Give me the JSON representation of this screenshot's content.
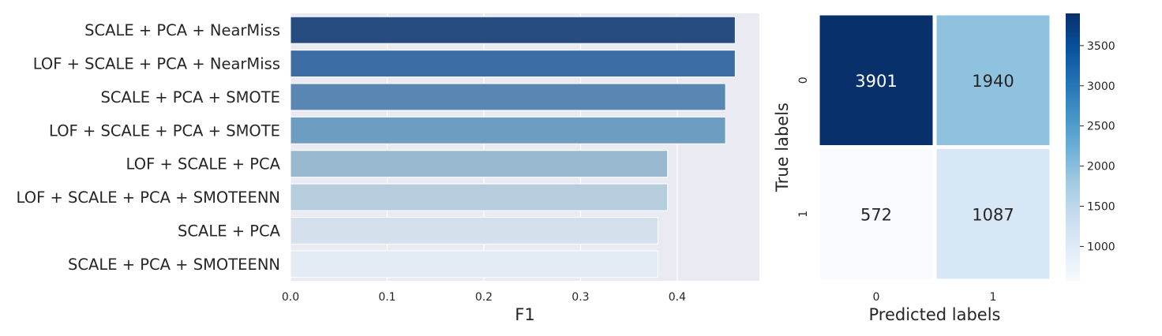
{
  "chart_data": [
    {
      "type": "bar",
      "orientation": "horizontal",
      "categories": [
        "SCALE + PCA + NearMiss",
        "LOF + SCALE + PCA + NearMiss",
        "SCALE + PCA + SMOTE",
        "LOF + SCALE + PCA + SMOTE",
        "LOF + SCALE + PCA",
        "LOF + SCALE + PCA + SMOTEENN",
        "SCALE + PCA",
        "SCALE + PCA + SMOTEENN"
      ],
      "values": [
        0.46,
        0.46,
        0.45,
        0.45,
        0.39,
        0.39,
        0.38,
        0.38
      ],
      "bar_colors": [
        "#264c80",
        "#3c6ea5",
        "#5986b2",
        "#6e9dc2",
        "#98b9d0",
        "#b5cddc",
        "#d4e0ec",
        "#e3ebf4"
      ],
      "xlabel": "F1",
      "ylabel": "",
      "xticks": [
        "0.0",
        "0.1",
        "0.2",
        "0.3",
        "0.4"
      ],
      "xlim": [
        0,
        0.485
      ],
      "grid": true,
      "background": "#eaeaf2"
    },
    {
      "type": "heatmap",
      "x_categories": [
        "0",
        "1"
      ],
      "y_categories": [
        "0",
        "1"
      ],
      "values": [
        [
          3901,
          1940
        ],
        [
          572,
          1087
        ]
      ],
      "xlabel": "Predicted labels",
      "ylabel": "True labels",
      "colormap": "Blues",
      "colorbar": {
        "ticks": [
          "1000",
          "1500",
          "2000",
          "2500",
          "3000",
          "3500"
        ],
        "range": [
          572,
          3901
        ]
      }
    }
  ]
}
